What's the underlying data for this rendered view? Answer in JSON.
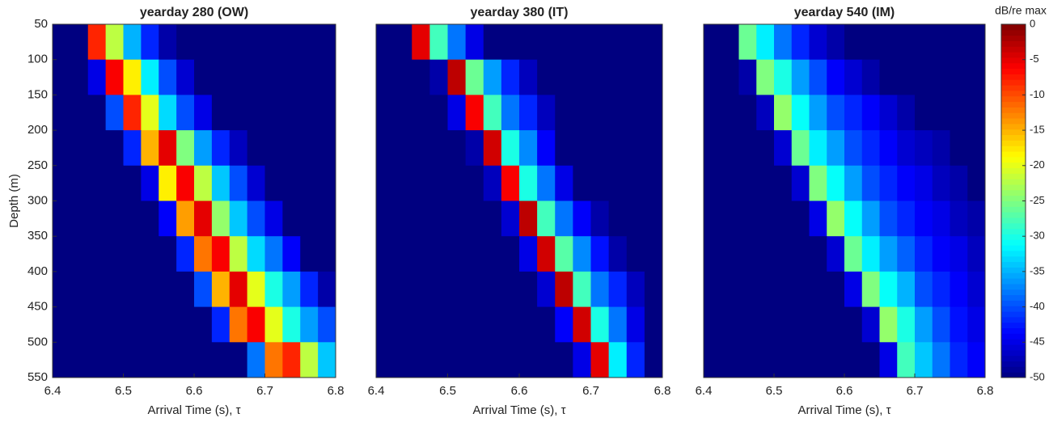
{
  "chart_data": [
    {
      "type": "heatmap",
      "title": "yearday 280 (OW)",
      "xlabel": "Arrival Time (s), τ",
      "ylabel": "Depth (m)",
      "colormap": "jet",
      "x": [
        6.4,
        6.425,
        6.45,
        6.475,
        6.5,
        6.525,
        6.55,
        6.575,
        6.6,
        6.625,
        6.65,
        6.675,
        6.7,
        6.725,
        6.75,
        6.775,
        6.8
      ],
      "y": [
        50,
        100,
        150,
        200,
        250,
        300,
        350,
        400,
        450,
        500,
        550
      ],
      "values": [
        [
          -50,
          -50,
          -8,
          -22,
          -35,
          -42,
          -48,
          -50,
          -50,
          -50,
          -50,
          -50,
          -50,
          -50,
          -50,
          -50
        ],
        [
          -50,
          -50,
          -45,
          -6,
          -18,
          -32,
          -40,
          -46,
          -50,
          -50,
          -50,
          -50,
          -50,
          -50,
          -50,
          -50
        ],
        [
          -50,
          -50,
          -50,
          -40,
          -8,
          -20,
          -33,
          -40,
          -45,
          -50,
          -50,
          -50,
          -50,
          -50,
          -50,
          -50
        ],
        [
          -50,
          -50,
          -50,
          -50,
          -42,
          -15,
          -5,
          -25,
          -36,
          -42,
          -47,
          -50,
          -50,
          -50,
          -50,
          -50
        ],
        [
          -50,
          -50,
          -50,
          -50,
          -50,
          -45,
          -18,
          -6,
          -22,
          -34,
          -40,
          -46,
          -50,
          -50,
          -50,
          -50
        ],
        [
          -50,
          -50,
          -50,
          -50,
          -50,
          -50,
          -44,
          -14,
          -5,
          -24,
          -34,
          -40,
          -45,
          -50,
          -50,
          -50
        ],
        [
          -50,
          -50,
          -50,
          -50,
          -50,
          -50,
          -50,
          -42,
          -12,
          -6,
          -22,
          -33,
          -38,
          -44,
          -50,
          -50
        ],
        [
          -50,
          -50,
          -50,
          -50,
          -50,
          -50,
          -50,
          -50,
          -40,
          -15,
          -5,
          -20,
          -30,
          -36,
          -42,
          -48
        ],
        [
          -50,
          -50,
          -50,
          -50,
          -50,
          -50,
          -50,
          -50,
          -50,
          -42,
          -12,
          -6,
          -20,
          -30,
          -36,
          -40
        ],
        [
          -50,
          -50,
          -50,
          -50,
          -50,
          -50,
          -50,
          -50,
          -50,
          -50,
          -50,
          -38,
          -12,
          -8,
          -22,
          -34
        ]
      ],
      "xlim": [
        6.4,
        6.8
      ],
      "xticks": [
        6.4,
        6.5,
        6.6,
        6.7,
        6.8
      ],
      "ylim": [
        50,
        550
      ],
      "yticks": [
        50,
        100,
        150,
        200,
        250,
        300,
        350,
        400,
        450,
        500,
        550
      ],
      "y_reversed": true
    },
    {
      "type": "heatmap",
      "title": "yearday 380 (IT)",
      "xlabel": "Arrival Time (s), τ",
      "colormap": "jet",
      "x": [
        6.4,
        6.425,
        6.45,
        6.475,
        6.5,
        6.525,
        6.55,
        6.575,
        6.6,
        6.625,
        6.65,
        6.675,
        6.7,
        6.725,
        6.75,
        6.775,
        6.8
      ],
      "y": [
        50,
        100,
        150,
        200,
        250,
        300,
        350,
        400,
        450,
        500,
        550
      ],
      "values": [
        [
          -50,
          -50,
          -5,
          -28,
          -38,
          -45,
          -50,
          -50,
          -50,
          -50,
          -50,
          -50,
          -50,
          -50,
          -50,
          -50
        ],
        [
          -50,
          -50,
          -50,
          -48,
          -3,
          -26,
          -36,
          -42,
          -47,
          -50,
          -50,
          -50,
          -50,
          -50,
          -50,
          -50
        ],
        [
          -50,
          -50,
          -50,
          -50,
          -45,
          -6,
          -28,
          -38,
          -42,
          -47,
          -50,
          -50,
          -50,
          -50,
          -50,
          -50
        ],
        [
          -50,
          -50,
          -50,
          -50,
          -50,
          -48,
          -4,
          -30,
          -37,
          -44,
          -50,
          -50,
          -50,
          -50,
          -50,
          -50
        ],
        [
          -50,
          -50,
          -50,
          -50,
          -50,
          -50,
          -47,
          -6,
          -30,
          -38,
          -45,
          -50,
          -50,
          -50,
          -50,
          -50
        ],
        [
          -50,
          -50,
          -50,
          -50,
          -50,
          -50,
          -50,
          -46,
          -3,
          -28,
          -38,
          -44,
          -48,
          -50,
          -50,
          -50
        ],
        [
          -50,
          -50,
          -50,
          -50,
          -50,
          -50,
          -50,
          -50,
          -45,
          -4,
          -27,
          -37,
          -43,
          -48,
          -50,
          -50
        ],
        [
          -50,
          -50,
          -50,
          -50,
          -50,
          -50,
          -50,
          -50,
          -50,
          -46,
          -3,
          -28,
          -38,
          -42,
          -47,
          -50
        ],
        [
          -50,
          -50,
          -50,
          -50,
          -50,
          -50,
          -50,
          -50,
          -50,
          -50,
          -44,
          -4,
          -30,
          -38,
          -45,
          -50
        ],
        [
          -50,
          -50,
          -50,
          -50,
          -50,
          -50,
          -50,
          -50,
          -50,
          -50,
          -50,
          -45,
          -5,
          -32,
          -42,
          -50
        ]
      ],
      "xlim": [
        6.4,
        6.8
      ],
      "xticks": [
        6.4,
        6.5,
        6.6,
        6.7,
        6.8
      ],
      "ylim": [
        50,
        550
      ],
      "y_reversed": true
    },
    {
      "type": "heatmap",
      "title": "yearday 540 (IM)",
      "xlabel": "Arrival Time (s), τ",
      "colormap": "jet",
      "x": [
        6.4,
        6.425,
        6.45,
        6.475,
        6.5,
        6.525,
        6.55,
        6.575,
        6.6,
        6.625,
        6.65,
        6.675,
        6.7,
        6.725,
        6.75,
        6.775,
        6.8
      ],
      "y": [
        50,
        100,
        150,
        200,
        250,
        300,
        350,
        400,
        450,
        500,
        550
      ],
      "values": [
        [
          -50,
          -50,
          -26,
          -32,
          -38,
          -42,
          -46,
          -48,
          -50,
          -50,
          -50,
          -50,
          -50,
          -50,
          -50,
          -50
        ],
        [
          -50,
          -50,
          -48,
          -25,
          -30,
          -36,
          -40,
          -44,
          -46,
          -48,
          -50,
          -50,
          -50,
          -50,
          -50,
          -50
        ],
        [
          -50,
          -50,
          -50,
          -47,
          -24,
          -31,
          -36,
          -40,
          -42,
          -44,
          -46,
          -48,
          -50,
          -50,
          -50,
          -50
        ],
        [
          -50,
          -50,
          -50,
          -50,
          -46,
          -26,
          -32,
          -36,
          -40,
          -42,
          -44,
          -46,
          -47,
          -48,
          -50,
          -50
        ],
        [
          -50,
          -50,
          -50,
          -50,
          -50,
          -46,
          -25,
          -31,
          -36,
          -40,
          -42,
          -44,
          -45,
          -47,
          -48,
          -50
        ],
        [
          -50,
          -50,
          -50,
          -50,
          -50,
          -50,
          -45,
          -24,
          -31,
          -36,
          -40,
          -42,
          -44,
          -45,
          -47,
          -48
        ],
        [
          -50,
          -50,
          -50,
          -50,
          -50,
          -50,
          -50,
          -46,
          -26,
          -32,
          -36,
          -39,
          -42,
          -44,
          -45,
          -47
        ],
        [
          -50,
          -50,
          -50,
          -50,
          -50,
          -50,
          -50,
          -50,
          -45,
          -25,
          -31,
          -35,
          -40,
          -42,
          -44,
          -46
        ],
        [
          -50,
          -50,
          -50,
          -50,
          -50,
          -50,
          -50,
          -50,
          -50,
          -46,
          -24,
          -30,
          -36,
          -40,
          -43,
          -45
        ],
        [
          -50,
          -50,
          -50,
          -50,
          -50,
          -50,
          -50,
          -50,
          -50,
          -50,
          -45,
          -28,
          -34,
          -38,
          -42,
          -44
        ]
      ],
      "xlim": [
        6.4,
        6.8
      ],
      "xticks": [
        6.4,
        6.5,
        6.6,
        6.7,
        6.8
      ],
      "ylim": [
        50,
        550
      ],
      "y_reversed": true,
      "colorbar": {
        "label": "dB/re max",
        "lim": [
          -50,
          0
        ],
        "ticks": [
          0,
          -5,
          -10,
          -15,
          -20,
          -25,
          -30,
          -35,
          -40,
          -45,
          -50
        ]
      }
    }
  ]
}
